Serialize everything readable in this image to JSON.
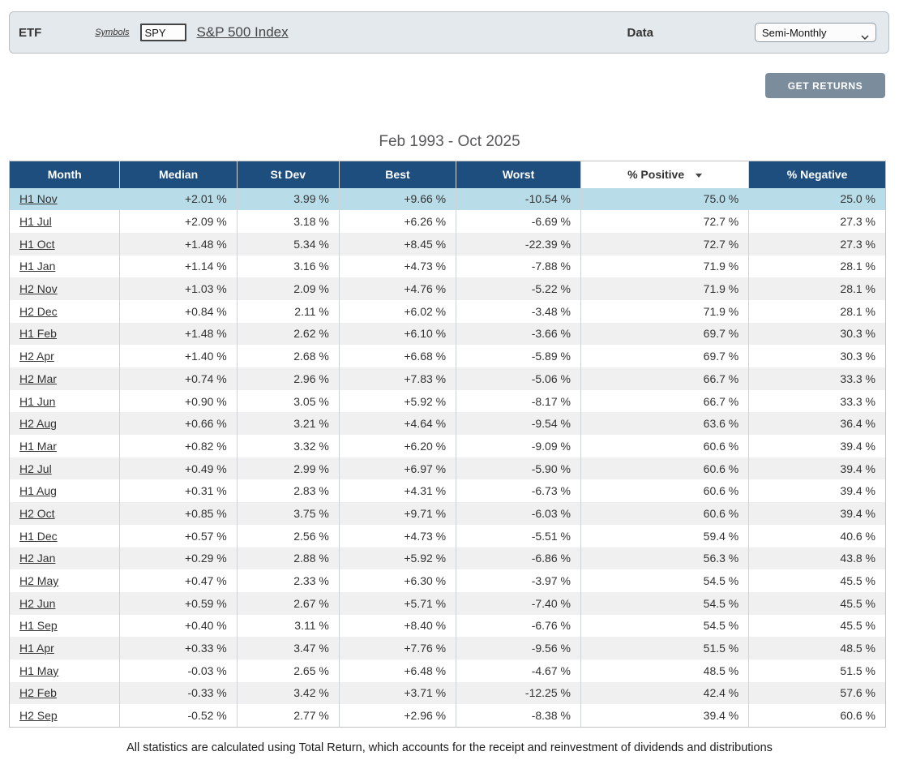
{
  "toolbar": {
    "etf_label": "ETF",
    "symbols_label": "Symbols",
    "symbol_value": "SPY",
    "index_link": "S&P 500 Index",
    "data_label": "Data",
    "data_select_value": "Semi-Monthly"
  },
  "actions": {
    "get_returns_label": "GET RETURNS"
  },
  "title": "Feb 1993 - Oct 2025",
  "footer_note": "All statistics are calculated using Total Return, which accounts for the receipt and reinvestment of dividends and distributions",
  "colors": {
    "header_blue": "#1e4e7d",
    "highlight_row": "#b8dce8",
    "positive_green": "#0a8f0a",
    "negative_red": "#ee0000",
    "button_gray": "#7b8d9c"
  },
  "table": {
    "columns": [
      "Month",
      "Median",
      "St Dev",
      "Best",
      "Worst",
      "% Positive",
      "% Negative"
    ],
    "sorted_column": "% Positive",
    "sort_direction": "desc",
    "rows": [
      {
        "month": "H1 Nov",
        "median": "+2.01 %",
        "stdev": "3.99 %",
        "best": "+9.66 %",
        "worst": "-10.54 %",
        "pos": "75.0 %",
        "neg": "25.0 %",
        "highlight": true
      },
      {
        "month": "H1 Jul",
        "median": "+2.09 %",
        "stdev": "3.18 %",
        "best": "+6.26 %",
        "worst": "-6.69 %",
        "pos": "72.7 %",
        "neg": "27.3 %",
        "highlight": false
      },
      {
        "month": "H1 Oct",
        "median": "+1.48 %",
        "stdev": "5.34 %",
        "best": "+8.45 %",
        "worst": "-22.39 %",
        "pos": "72.7 %",
        "neg": "27.3 %",
        "highlight": false
      },
      {
        "month": "H1 Jan",
        "median": "+1.14 %",
        "stdev": "3.16 %",
        "best": "+4.73 %",
        "worst": "-7.88 %",
        "pos": "71.9 %",
        "neg": "28.1 %",
        "highlight": false
      },
      {
        "month": "H2 Nov",
        "median": "+1.03 %",
        "stdev": "2.09 %",
        "best": "+4.76 %",
        "worst": "-5.22 %",
        "pos": "71.9 %",
        "neg": "28.1 %",
        "highlight": false
      },
      {
        "month": "H2 Dec",
        "median": "+0.84 %",
        "stdev": "2.11 %",
        "best": "+6.02 %",
        "worst": "-3.48 %",
        "pos": "71.9 %",
        "neg": "28.1 %",
        "highlight": false
      },
      {
        "month": "H1 Feb",
        "median": "+1.48 %",
        "stdev": "2.62 %",
        "best": "+6.10 %",
        "worst": "-3.66 %",
        "pos": "69.7 %",
        "neg": "30.3 %",
        "highlight": false
      },
      {
        "month": "H2 Apr",
        "median": "+1.40 %",
        "stdev": "2.68 %",
        "best": "+6.68 %",
        "worst": "-5.89 %",
        "pos": "69.7 %",
        "neg": "30.3 %",
        "highlight": false
      },
      {
        "month": "H2 Mar",
        "median": "+0.74 %",
        "stdev": "2.96 %",
        "best": "+7.83 %",
        "worst": "-5.06 %",
        "pos": "66.7 %",
        "neg": "33.3 %",
        "highlight": false
      },
      {
        "month": "H1 Jun",
        "median": "+0.90 %",
        "stdev": "3.05 %",
        "best": "+5.92 %",
        "worst": "-8.17 %",
        "pos": "66.7 %",
        "neg": "33.3 %",
        "highlight": false
      },
      {
        "month": "H2 Aug",
        "median": "+0.66 %",
        "stdev": "3.21 %",
        "best": "+4.64 %",
        "worst": "-9.54 %",
        "pos": "63.6 %",
        "neg": "36.4 %",
        "highlight": false
      },
      {
        "month": "H1 Mar",
        "median": "+0.82 %",
        "stdev": "3.32 %",
        "best": "+6.20 %",
        "worst": "-9.09 %",
        "pos": "60.6 %",
        "neg": "39.4 %",
        "highlight": false
      },
      {
        "month": "H2 Jul",
        "median": "+0.49 %",
        "stdev": "2.99 %",
        "best": "+6.97 %",
        "worst": "-5.90 %",
        "pos": "60.6 %",
        "neg": "39.4 %",
        "highlight": false
      },
      {
        "month": "H1 Aug",
        "median": "+0.31 %",
        "stdev": "2.83 %",
        "best": "+4.31 %",
        "worst": "-6.73 %",
        "pos": "60.6 %",
        "neg": "39.4 %",
        "highlight": false
      },
      {
        "month": "H2 Oct",
        "median": "+0.85 %",
        "stdev": "3.75 %",
        "best": "+9.71 %",
        "worst": "-6.03 %",
        "pos": "60.6 %",
        "neg": "39.4 %",
        "highlight": false
      },
      {
        "month": "H1 Dec",
        "median": "+0.57 %",
        "stdev": "2.56 %",
        "best": "+4.73 %",
        "worst": "-5.51 %",
        "pos": "59.4 %",
        "neg": "40.6 %",
        "highlight": false
      },
      {
        "month": "H2 Jan",
        "median": "+0.29 %",
        "stdev": "2.88 %",
        "best": "+5.92 %",
        "worst": "-6.86 %",
        "pos": "56.3 %",
        "neg": "43.8 %",
        "highlight": false
      },
      {
        "month": "H2 May",
        "median": "+0.47 %",
        "stdev": "2.33 %",
        "best": "+6.30 %",
        "worst": "-3.97 %",
        "pos": "54.5 %",
        "neg": "45.5 %",
        "highlight": false
      },
      {
        "month": "H2 Jun",
        "median": "+0.59 %",
        "stdev": "2.67 %",
        "best": "+5.71 %",
        "worst": "-7.40 %",
        "pos": "54.5 %",
        "neg": "45.5 %",
        "highlight": false
      },
      {
        "month": "H1 Sep",
        "median": "+0.40 %",
        "stdev": "3.11 %",
        "best": "+8.40 %",
        "worst": "-6.76 %",
        "pos": "54.5 %",
        "neg": "45.5 %",
        "highlight": false
      },
      {
        "month": "H1 Apr",
        "median": "+0.33 %",
        "stdev": "3.47 %",
        "best": "+7.76 %",
        "worst": "-9.56 %",
        "pos": "51.5 %",
        "neg": "48.5 %",
        "highlight": false
      },
      {
        "month": "H1 May",
        "median": "-0.03 %",
        "stdev": "2.65 %",
        "best": "+6.48 %",
        "worst": "-4.67 %",
        "pos": "48.5 %",
        "neg": "51.5 %",
        "highlight": false
      },
      {
        "month": "H2 Feb",
        "median": "-0.33 %",
        "stdev": "3.42 %",
        "best": "+3.71 %",
        "worst": "-12.25 %",
        "pos": "42.4 %",
        "neg": "57.6 %",
        "highlight": false
      },
      {
        "month": "H2 Sep",
        "median": "-0.52 %",
        "stdev": "2.77 %",
        "best": "+2.96 %",
        "worst": "-8.38 %",
        "pos": "39.4 %",
        "neg": "60.6 %",
        "highlight": false
      }
    ]
  }
}
